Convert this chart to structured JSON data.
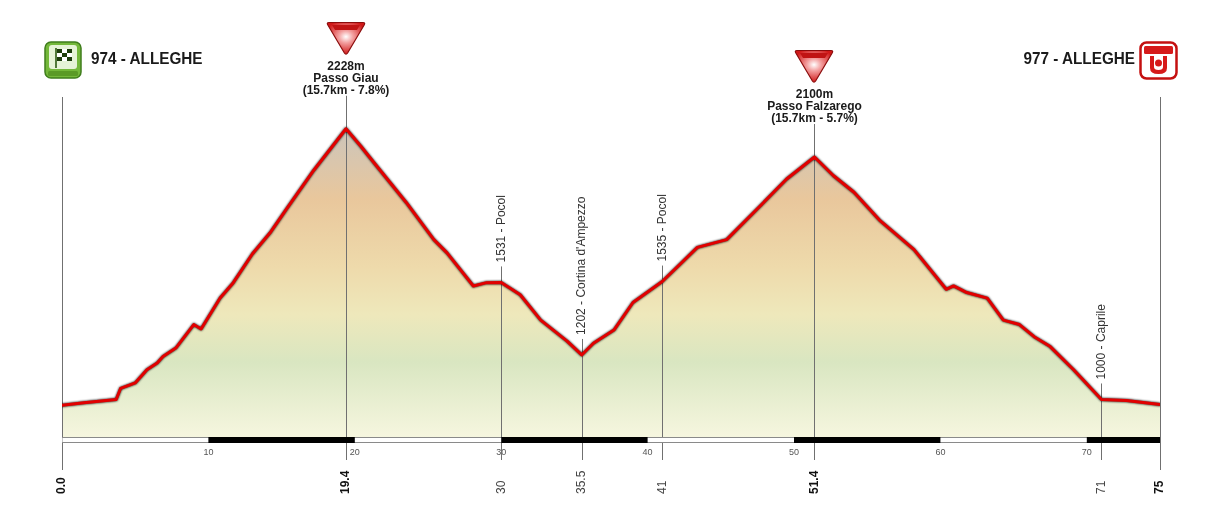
{
  "chart_data": {
    "type": "area",
    "x": [
      0,
      1.5,
      3.7,
      4.0,
      4.6,
      5.0,
      5.8,
      6.5,
      6.9,
      7.8,
      9.0,
      9.5,
      10.8,
      11.7,
      13.0,
      14.2,
      15.4,
      17.2,
      19.4,
      20.4,
      21.3,
      23.5,
      25.4,
      26.3,
      28.1,
      29.0,
      30,
      31.3,
      32.7,
      34.5,
      35.5,
      36.3,
      37.7,
      39.0,
      41,
      43.4,
      45.4,
      47.5,
      49.5,
      51.4,
      52.7,
      54.1,
      55.9,
      58.2,
      60.4,
      60.9,
      61.8,
      63.2,
      64.3,
      65.4,
      66.4,
      67.5,
      69.1,
      71,
      72.7,
      75
    ],
    "values": [
      974,
      985,
      1000,
      1050,
      1065,
      1075,
      1135,
      1165,
      1195,
      1235,
      1340,
      1320,
      1460,
      1530,
      1660,
      1755,
      1870,
      2040,
      2228,
      2150,
      2075,
      1895,
      1725,
      1665,
      1515,
      1530,
      1531,
      1475,
      1360,
      1265,
      1202,
      1255,
      1315,
      1440,
      1535,
      1690,
      1725,
      1865,
      2000,
      2100,
      2015,
      1940,
      1810,
      1680,
      1500,
      1515,
      1485,
      1460,
      1360,
      1340,
      1285,
      1240,
      1135,
      1000,
      995,
      977
    ],
    "value_labels": [
      null,
      null,
      null,
      null,
      null,
      null,
      null,
      null,
      null,
      null,
      null,
      null,
      null,
      null,
      null,
      null,
      null,
      null,
      null,
      null,
      null,
      null,
      null,
      null,
      null,
      null,
      "1531 - Pocol",
      null,
      null,
      null,
      "1202 - Cortina d'Ampezzo",
      null,
      null,
      null,
      "1535 - Pocol",
      null,
      null,
      null,
      null,
      null,
      null,
      null,
      null,
      null,
      null,
      null,
      null,
      null,
      null,
      null,
      null,
      null,
      null,
      "1000 - Caprile",
      null,
      null
    ],
    "color": "#e10000",
    "xlim": [
      0,
      75
    ],
    "xticks": [
      10,
      20,
      30,
      40,
      50,
      60,
      70
    ],
    "tick_labels": "x",
    "ref_lines": [
      {
        "axis": "x",
        "value": 0,
        "label": "0.0",
        "color": "#707070"
      },
      {
        "axis": "x",
        "value": 19.4,
        "label": "19.4",
        "color": "#707070"
      },
      {
        "axis": "x",
        "value": 30,
        "label": "30",
        "color": "#707070"
      },
      {
        "axis": "x",
        "value": 35.5,
        "label": "35.5",
        "color": "#707070"
      },
      {
        "axis": "x",
        "value": 41,
        "label": "41",
        "color": "#707070"
      },
      {
        "axis": "x",
        "value": 51.4,
        "label": "51.4",
        "color": "#707070"
      },
      {
        "axis": "x",
        "value": 71,
        "label": "71",
        "color": "#707070"
      },
      {
        "axis": "x",
        "value": 75,
        "label": "75",
        "color": "#707070"
      }
    ],
    "annotations": [
      "974 - ALLEGHE",
      {
        "text": "2228m\nPasso Giau\n(15.7km - 7.8%)",
        "x": 19.4,
        "y": 2228
      },
      {
        "text": "2100m\nPasso Falzarego\n(15.7km - 5.7%)",
        "x": 51.4,
        "y": 2100
      },
      "977 - ALLEGHE"
    ]
  }
}
